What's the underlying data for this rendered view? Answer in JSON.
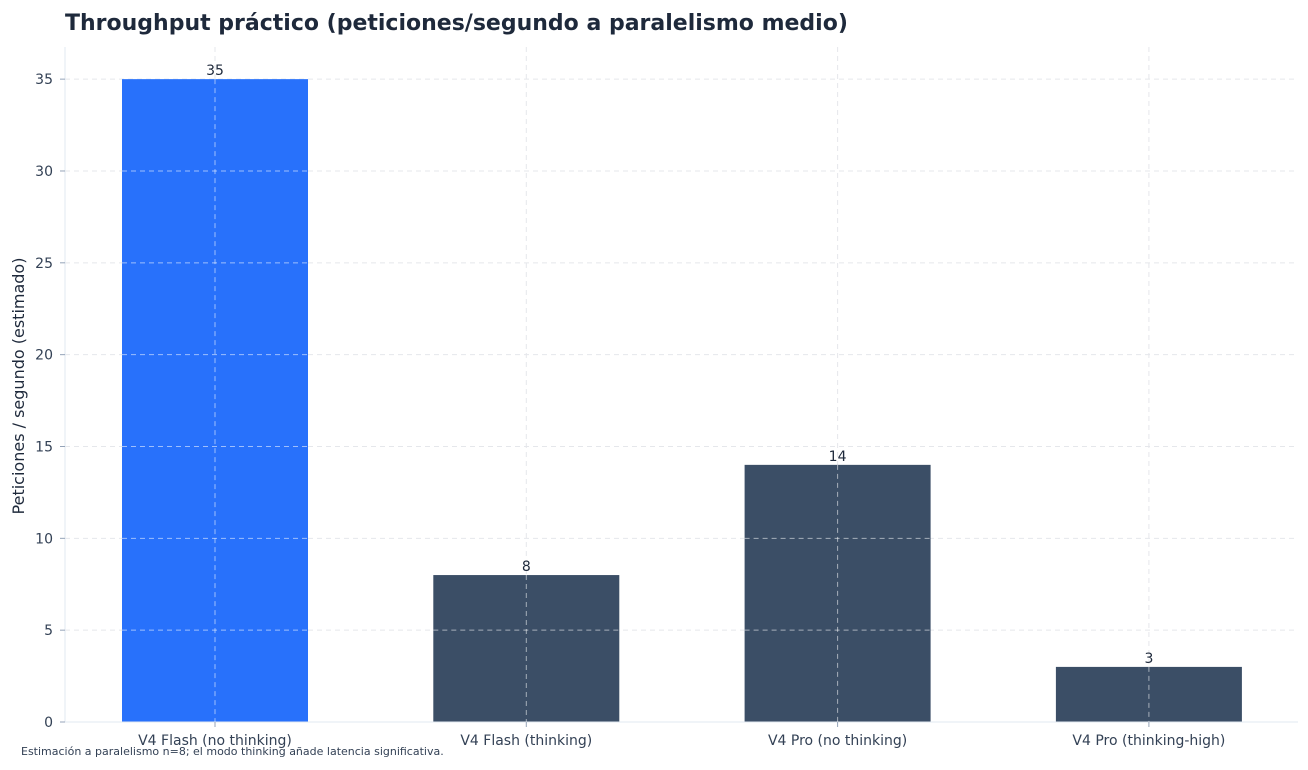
{
  "chart_data": {
    "type": "bar",
    "title": "Throughput práctico (peticiones/segundo a paralelismo medio)",
    "ylabel": "Peticiones / segundo (estimado)",
    "xlabel": "",
    "categories": [
      "V4 Flash (no thinking)",
      "V4 Flash (thinking)",
      "V4 Pro (no thinking)",
      "V4 Pro (thinking-high)"
    ],
    "values": [
      35,
      8,
      14,
      3
    ],
    "data_labels": [
      "35",
      "8",
      "14",
      "3"
    ],
    "bar_colors": [
      "#2871fb",
      "#3b4e66",
      "#3b4e66",
      "#3b4e66"
    ],
    "ylim": [
      0,
      36.75
    ],
    "yticks": [
      0,
      5,
      10,
      15,
      20,
      25,
      30,
      35
    ],
    "grid": true,
    "legend": "none"
  },
  "footnote": "Estimación a paralelismo n=8; el modo thinking añade latencia significativa."
}
